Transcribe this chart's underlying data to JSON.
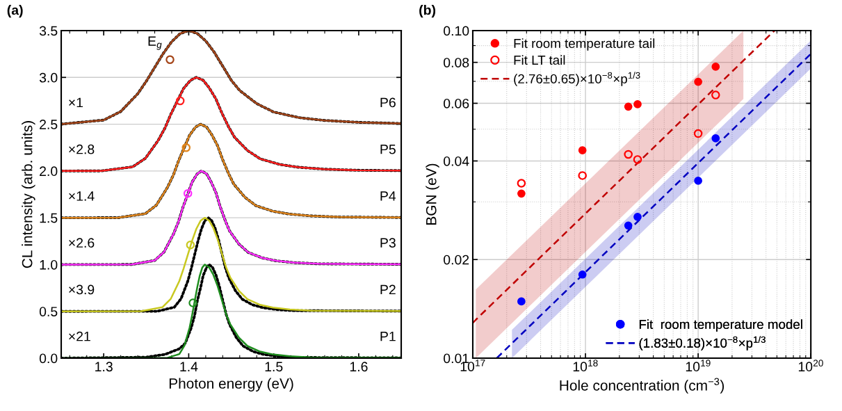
{
  "chart_data": [
    {
      "type": "line",
      "title": "(a)",
      "xlabel": "Photon energy (eV)",
      "ylabel": "CL intensity (arb. units)",
      "xlim": [
        1.25,
        1.65
      ],
      "ylim": [
        0,
        3.5
      ],
      "xticks": [
        1.3,
        1.4,
        1.5,
        1.6
      ],
      "yticks": [
        {
          "value": 0,
          "label": "0.0"
        },
        {
          "value": 0.5,
          "label": "0.5"
        },
        {
          "value": 1,
          "label": "1.0"
        },
        {
          "value": 1.5,
          "label": "1.5"
        },
        {
          "value": 2,
          "label": "2.0"
        },
        {
          "value": 2.5,
          "label": "2.5"
        },
        {
          "value": 3,
          "label": "3.0"
        },
        {
          "value": 3.5,
          "label": "3.5"
        }
      ],
      "grid": "y",
      "legend": false,
      "series": [
        {
          "color": "#000000",
          "line_style": "dotted",
          "x": [
            1.25,
            1.3,
            1.32,
            1.34,
            1.35,
            1.36,
            1.37,
            1.38,
            1.39,
            1.4,
            1.41,
            1.42,
            1.43,
            1.44,
            1.45,
            1.46,
            1.48,
            1.5,
            1.53,
            1.56,
            1.6,
            1.65
          ],
          "values": [
            2.501,
            2.544,
            2.635,
            2.825,
            2.958,
            3.107,
            3.255,
            3.382,
            3.469,
            3.5,
            3.47,
            3.39,
            3.27,
            3.12,
            2.97,
            2.86,
            2.72,
            2.63,
            2.57,
            2.54,
            2.52,
            2.508
          ]
        },
        {
          "color": "#a5461a",
          "x": [
            1.25,
            1.3,
            1.32,
            1.34,
            1.35,
            1.36,
            1.37,
            1.38,
            1.39,
            1.4,
            1.41,
            1.42,
            1.43,
            1.44,
            1.45,
            1.46,
            1.48,
            1.5,
            1.53,
            1.56,
            1.6,
            1.65
          ],
          "values": [
            2.501,
            2.544,
            2.635,
            2.825,
            2.958,
            3.107,
            3.255,
            3.382,
            3.469,
            3.5,
            3.47,
            3.39,
            3.27,
            3.12,
            2.97,
            2.86,
            2.72,
            2.63,
            2.57,
            2.54,
            2.52,
            2.508
          ]
        },
        {
          "color": "#000000",
          "line_style": "dotted",
          "x": [
            1.25,
            1.297,
            1.334,
            1.349,
            1.364,
            1.372,
            1.379,
            1.387,
            1.394,
            1.402,
            1.409,
            1.417,
            1.424,
            1.432,
            1.439,
            1.447,
            1.454,
            1.469,
            1.484,
            1.507,
            1.529,
            1.559,
            1.597,
            1.65
          ],
          "values": [
            2.0,
            2.001,
            2.044,
            2.135,
            2.325,
            2.458,
            2.607,
            2.755,
            2.882,
            2.969,
            3.0,
            2.97,
            2.89,
            2.77,
            2.62,
            2.47,
            2.36,
            2.22,
            2.13,
            2.07,
            2.04,
            2.02,
            2.008,
            2.004
          ]
        },
        {
          "color": "#ff2020",
          "x": [
            1.25,
            1.297,
            1.334,
            1.349,
            1.364,
            1.372,
            1.379,
            1.387,
            1.394,
            1.402,
            1.409,
            1.417,
            1.424,
            1.432,
            1.439,
            1.447,
            1.454,
            1.469,
            1.484,
            1.507,
            1.529,
            1.559,
            1.597,
            1.65
          ],
          "values": [
            2.0,
            2.001,
            2.044,
            2.135,
            2.325,
            2.458,
            2.607,
            2.755,
            2.882,
            2.969,
            3.0,
            2.97,
            2.89,
            2.77,
            2.62,
            2.47,
            2.36,
            2.22,
            2.13,
            2.07,
            2.04,
            2.02,
            2.008,
            2.004
          ]
        },
        {
          "color": "#000000",
          "line_style": "dotted",
          "x": [
            1.25,
            1.317,
            1.349,
            1.362,
            1.375,
            1.382,
            1.388,
            1.395,
            1.401,
            1.408,
            1.414,
            1.421,
            1.427,
            1.434,
            1.44,
            1.447,
            1.453,
            1.466,
            1.479,
            1.499,
            1.518,
            1.544,
            1.577,
            1.65
          ],
          "values": [
            1.5,
            1.501,
            1.544,
            1.635,
            1.825,
            1.958,
            2.107,
            2.255,
            2.382,
            2.469,
            2.5,
            2.47,
            2.39,
            2.27,
            2.12,
            1.97,
            1.86,
            1.72,
            1.63,
            1.57,
            1.54,
            1.52,
            1.508,
            1.503
          ]
        },
        {
          "color": "#e0861e",
          "x": [
            1.25,
            1.317,
            1.349,
            1.362,
            1.375,
            1.382,
            1.388,
            1.395,
            1.401,
            1.408,
            1.414,
            1.421,
            1.427,
            1.434,
            1.44,
            1.447,
            1.453,
            1.466,
            1.479,
            1.499,
            1.518,
            1.544,
            1.577,
            1.65
          ],
          "values": [
            1.5,
            1.501,
            1.544,
            1.635,
            1.825,
            1.958,
            2.107,
            2.255,
            2.382,
            2.469,
            2.5,
            2.47,
            2.39,
            2.27,
            2.12,
            1.97,
            1.86,
            1.72,
            1.63,
            1.57,
            1.54,
            1.52,
            1.508,
            1.503
          ]
        },
        {
          "color": "#000000",
          "line_style": "dotted",
          "x": [
            1.25,
            1.333,
            1.36,
            1.371,
            1.382,
            1.388,
            1.393,
            1.399,
            1.404,
            1.41,
            1.415,
            1.421,
            1.426,
            1.432,
            1.437,
            1.443,
            1.448,
            1.459,
            1.47,
            1.487,
            1.503,
            1.525,
            1.553,
            1.65
          ],
          "values": [
            1.0,
            1.001,
            1.044,
            1.135,
            1.325,
            1.458,
            1.607,
            1.755,
            1.882,
            1.969,
            2.0,
            1.97,
            1.89,
            1.77,
            1.62,
            1.47,
            1.36,
            1.22,
            1.13,
            1.07,
            1.04,
            1.02,
            1.008,
            1.003
          ]
        },
        {
          "color": "#ff30ff",
          "x": [
            1.25,
            1.333,
            1.36,
            1.371,
            1.382,
            1.388,
            1.393,
            1.399,
            1.404,
            1.41,
            1.415,
            1.421,
            1.426,
            1.432,
            1.437,
            1.443,
            1.448,
            1.459,
            1.47,
            1.487,
            1.503,
            1.525,
            1.553,
            1.65
          ],
          "values": [
            1.0,
            1.001,
            1.044,
            1.135,
            1.325,
            1.458,
            1.607,
            1.755,
            1.882,
            1.969,
            2.0,
            1.97,
            1.89,
            1.77,
            1.62,
            1.47,
            1.36,
            1.22,
            1.13,
            1.07,
            1.04,
            1.02,
            1.008,
            1.003
          ]
        },
        {
          "color": "#000000",
          "line_style": "dotted",
          "x": [
            1.25,
            1.363,
            1.383,
            1.391,
            1.399,
            1.403,
            1.407,
            1.411,
            1.415,
            1.419,
            1.423,
            1.427,
            1.431,
            1.435,
            1.439,
            1.443,
            1.447,
            1.455,
            1.463,
            1.475,
            1.487,
            1.503,
            1.523,
            1.65
          ],
          "values": [
            0.5,
            0.501,
            0.544,
            0.635,
            0.825,
            0.958,
            1.107,
            1.255,
            1.382,
            1.469,
            1.5,
            1.47,
            1.39,
            1.27,
            1.12,
            0.97,
            0.86,
            0.72,
            0.63,
            0.57,
            0.54,
            0.52,
            0.508,
            0.503
          ]
        },
        {
          "color": "#c8c820",
          "x": [
            1.25,
            1.344,
            1.369,
            1.379,
            1.389,
            1.394,
            1.399,
            1.404,
            1.409,
            1.414,
            1.419,
            1.424,
            1.429,
            1.434,
            1.439,
            1.444,
            1.449,
            1.459,
            1.469,
            1.484,
            1.499,
            1.519,
            1.544,
            1.65
          ],
          "values": [
            0.5,
            0.501,
            0.544,
            0.635,
            0.825,
            0.958,
            1.107,
            1.255,
            1.382,
            1.469,
            1.5,
            1.47,
            1.39,
            1.27,
            1.12,
            0.97,
            0.86,
            0.72,
            0.63,
            0.57,
            0.54,
            0.52,
            0.508,
            0.503
          ]
        },
        {
          "color": "#000000",
          "line_style": "dotted",
          "x": [
            1.25,
            1.35,
            1.372,
            1.389,
            1.396,
            1.403,
            1.407,
            1.41,
            1.414,
            1.417,
            1.421,
            1.424,
            1.428,
            1.432,
            1.436,
            1.44,
            1.444,
            1.448,
            1.456,
            1.464,
            1.476,
            1.488,
            1.504,
            1.524,
            1.65
          ],
          "values": [
            0.0,
            0.01,
            0.04,
            0.1,
            0.16,
            0.325,
            0.458,
            0.607,
            0.755,
            0.882,
            0.969,
            1.0,
            0.97,
            0.89,
            0.77,
            0.62,
            0.47,
            0.36,
            0.22,
            0.13,
            0.07,
            0.04,
            0.02,
            0.008,
            0.003
          ]
        },
        {
          "color": "#1e8c1e",
          "x": [
            1.25,
            1.374,
            1.389,
            1.395,
            1.401,
            1.404,
            1.407,
            1.41,
            1.413,
            1.416,
            1.419,
            1.424,
            1.429,
            1.434,
            1.439,
            1.444,
            1.449,
            1.459,
            1.469,
            1.484,
            1.499,
            1.519,
            1.544,
            1.65
          ],
          "values": [
            0.0,
            0.001,
            0.044,
            0.135,
            0.325,
            0.458,
            0.607,
            0.755,
            0.882,
            0.969,
            1.0,
            0.97,
            0.89,
            0.77,
            0.62,
            0.47,
            0.36,
            0.22,
            0.13,
            0.07,
            0.04,
            0.02,
            0.008,
            0.003
          ]
        },
        {
          "type": "scatter",
          "marker": "open circle",
          "x": [
            1.378,
            1.39,
            1.397,
            1.399,
            1.402,
            1.405
          ],
          "values": [
            3.19,
            2.75,
            2.25,
            1.76,
            1.21,
            0.59
          ],
          "colors": [
            "#a5461a",
            "#ff2020",
            "#e0861e",
            "#ff30ff",
            "#c8c820",
            "#1e8c1e"
          ]
        }
      ],
      "annotations": [
        {
          "text": "E$_{g}$",
          "x": 1.378,
          "y": 3.19
        },
        "×1",
        "P6",
        "×2.8",
        "P5",
        "×1.4",
        "P4",
        "×2.6",
        "P3",
        "×3.9",
        "P2",
        "×21",
        "P1"
      ]
    },
    {
      "type": "scatter",
      "title": "(b)",
      "xlabel": "Hole concentration (cm$^{−3}$)",
      "ylabel": "BGN (eV)",
      "log": "xy",
      "xlim": [
        1e+17,
        1e+20
      ],
      "ylim": [
        0.01,
        0.1
      ],
      "xticks": [
        {
          "value": 1e+17,
          "label": "10$^{17}$"
        },
        {
          "value": 1e+18,
          "label": "10$^{18}$"
        },
        {
          "value": 1e+19,
          "label": "10$^{19}$"
        },
        {
          "value": 1e+20,
          "label": "10$^{20}$"
        }
      ],
      "yticks": [
        {
          "value": 0.01,
          "label": "0.01"
        },
        {
          "value": 0.02,
          "label": "0.02"
        },
        {
          "value": 0.04,
          "label": "0.04"
        },
        {
          "value": 0.06,
          "label": "0.06"
        },
        {
          "value": 0.08,
          "label": "0.08"
        },
        {
          "value": 0.1,
          "label": "0.10"
        }
      ],
      "grid": true,
      "legend": "top left",
      "marker": "circle",
      "series": [
        {
          "name": "Fit room temperature tail",
          "color": "#ff0000",
          "x": [
            2.7e+17,
            9.4e+17,
            2.4e+18,
            2.9e+18,
            1e+19,
            1.43e+19
          ],
          "values": [
            0.0318,
            0.0431,
            0.0586,
            0.0596,
            0.0698,
            0.0776
          ]
        },
        {
          "name": "Fit LT tail",
          "color": "#ff0000",
          "marker": "open circle",
          "x": [
            2.7e+17,
            9.4e+17,
            2.4e+18,
            2.9e+18,
            1e+19,
            1.43e+19
          ],
          "values": [
            0.0342,
            0.0361,
            0.0419,
            0.0404,
            0.0485,
            0.0636
          ]
        },
        {
          "name": "(2.76±0.65)×10$^{−8}$×p$^{1/3}$",
          "type": "line",
          "marker": "none",
          "line_style": "dashed",
          "color": "#c00000",
          "x": [
            1e+17,
            1.064e+17,
            2.52e+19,
            4.76e+19
          ],
          "values": [
            0.0128,
            0.0131,
            0.081,
            0.1
          ],
          "lower": [
            null,
            0.01,
            0.0619,
            null
          ],
          "upper": [
            null,
            0.0162,
            0.1,
            null
          ]
        },
        {
          "name": "Fit  room temperature model",
          "color": "#0000ff",
          "x": [
            2.7e+17,
            9.4e+17,
            2.4e+18,
            2.9e+18,
            1e+19,
            1.43e+19
          ],
          "values": [
            0.0149,
            0.018,
            0.0254,
            0.027,
            0.0348,
            0.0469
          ]
        },
        {
          "name": "(1.83±0.18)×10$^{−8}$×p$^{1/3}$",
          "type": "line",
          "marker": "none",
          "line_style": "dashed",
          "color": "#0000c0",
          "x": [
            1.632e+17,
            2.226e+17,
            1e+20
          ],
          "values": [
            0.01,
            0.0111,
            0.0849
          ],
          "lower": [
            null,
            0.01,
            0.0766
          ],
          "upper": [
            null,
            0.0122,
            0.0933
          ]
        }
      ]
    }
  ]
}
